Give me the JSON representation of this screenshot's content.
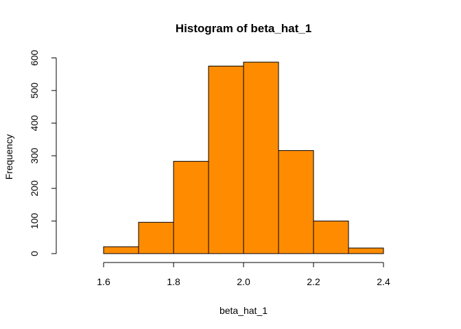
{
  "chart_data": {
    "type": "bar",
    "title": "Histogram of beta_hat_1",
    "xlabel": "beta_hat_1",
    "ylabel": "Frequency",
    "bins": [
      {
        "x0": 1.6,
        "x1": 1.7,
        "count": 21
      },
      {
        "x0": 1.7,
        "x1": 1.8,
        "count": 96
      },
      {
        "x0": 1.8,
        "x1": 1.9,
        "count": 283
      },
      {
        "x0": 1.9,
        "x1": 2.0,
        "count": 575
      },
      {
        "x0": 2.0,
        "x1": 2.1,
        "count": 587
      },
      {
        "x0": 2.1,
        "x1": 2.2,
        "count": 316
      },
      {
        "x0": 2.2,
        "x1": 2.3,
        "count": 100
      },
      {
        "x0": 2.3,
        "x1": 2.4,
        "count": 17
      }
    ],
    "xlim": [
      1.5,
      2.5
    ],
    "ylim": [
      0,
      600
    ],
    "x_ticks": [
      "1.6",
      "1.8",
      "2.0",
      "2.2",
      "2.4"
    ],
    "y_ticks": [
      "0",
      "100",
      "200",
      "300",
      "400",
      "500",
      "600"
    ],
    "bar_color": "#FF8C00",
    "grid": false,
    "legend": "none"
  }
}
